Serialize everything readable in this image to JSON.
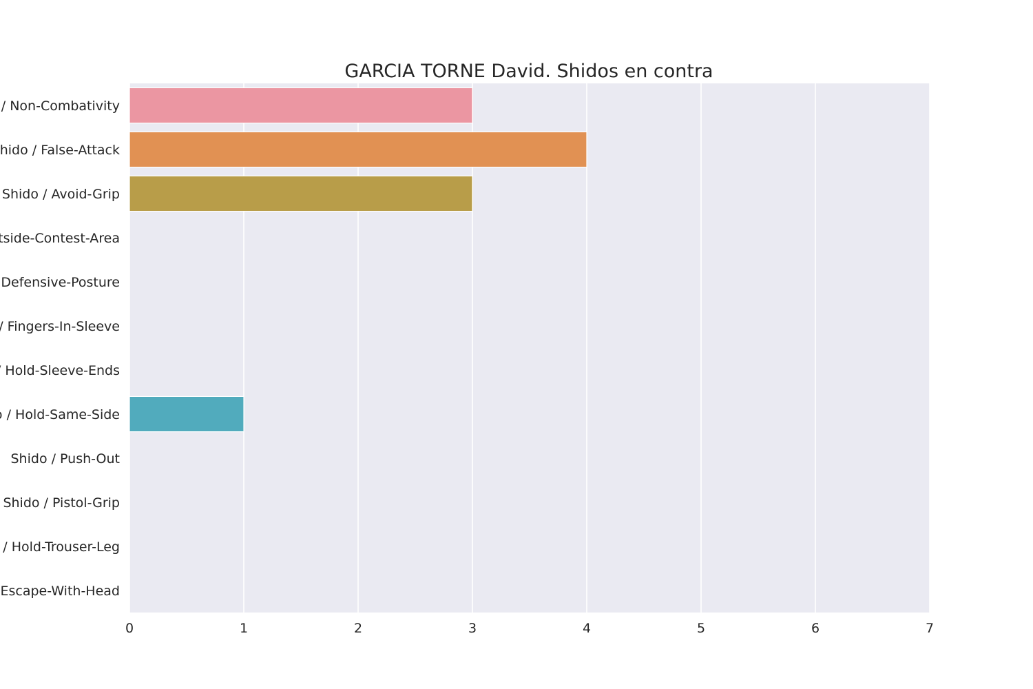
{
  "chart_data": {
    "type": "bar",
    "orientation": "horizontal",
    "title": "GARCIA TORNE David. Shidos en contra",
    "xlabel": "",
    "ylabel": "",
    "categories": [
      "Shido / Non-Combativity",
      "Shido / False-Attack",
      "Shido / Avoid-Grip",
      "Shido / Outside-Contest-Area",
      "Shido / Defensive-Posture",
      "Shido / Fingers-In-Sleeve",
      "Shido / Hold-Sleeve-Ends",
      "Shido / Hold-Same-Side",
      "Shido / Push-Out",
      "Shido / Pistol-Grip",
      "Shido / Hold-Trouser-Leg",
      "Shido / Escape-With-Head"
    ],
    "values": [
      3,
      4,
      3,
      0,
      0,
      0,
      0,
      1,
      0,
      0,
      0,
      0
    ],
    "xlim": [
      0,
      7
    ],
    "xticks": [
      "0",
      "1",
      "2",
      "3",
      "4",
      "5",
      "6",
      "7"
    ],
    "grid": true,
    "legend": "none",
    "colors": {
      "plot_background": "#eaeaf2",
      "grid": "#ffffff",
      "text": "#262626",
      "bars": [
        "#eb96a2",
        "#e19153",
        "#b89d49",
        "#98a84a",
        "#5bb04f",
        "#55ae8b",
        "#58aaa0",
        "#51abbd",
        "#59a5e0",
        "#aa93e6",
        "#dd86e6",
        "#e98cc2"
      ]
    }
  }
}
